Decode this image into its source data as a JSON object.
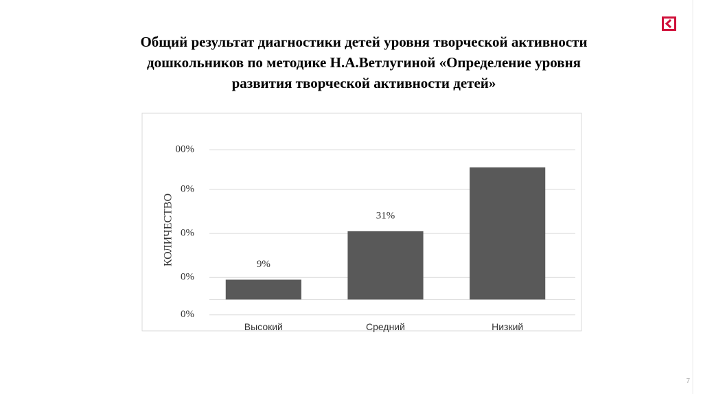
{
  "title_lines": [
    "Общий результат диагностики детей уровня творческой активности",
    "дошкольников по методике Н.А.Ветлугиной «Определение уровня",
    "развития творческой активности детей»"
  ],
  "page_number": "7",
  "chart_data": {
    "type": "bar",
    "ylabel": "КОЛИЧЕСТВО",
    "categories": [
      "Высокий",
      "Средний",
      "Низкий"
    ],
    "values": [
      9,
      31,
      60
    ],
    "value_labels": [
      "9%",
      "31%",
      null
    ],
    "color": "#595959",
    "ylim": [
      -8,
      83
    ],
    "yticks": [
      {
        "value": -7,
        "label": "0%"
      },
      {
        "value": 10,
        "label": "0%"
      },
      {
        "value": 30,
        "label": "0%"
      },
      {
        "value": 50,
        "label": "0%"
      },
      {
        "value": 68,
        "label": "00%"
      }
    ],
    "grid": true
  }
}
